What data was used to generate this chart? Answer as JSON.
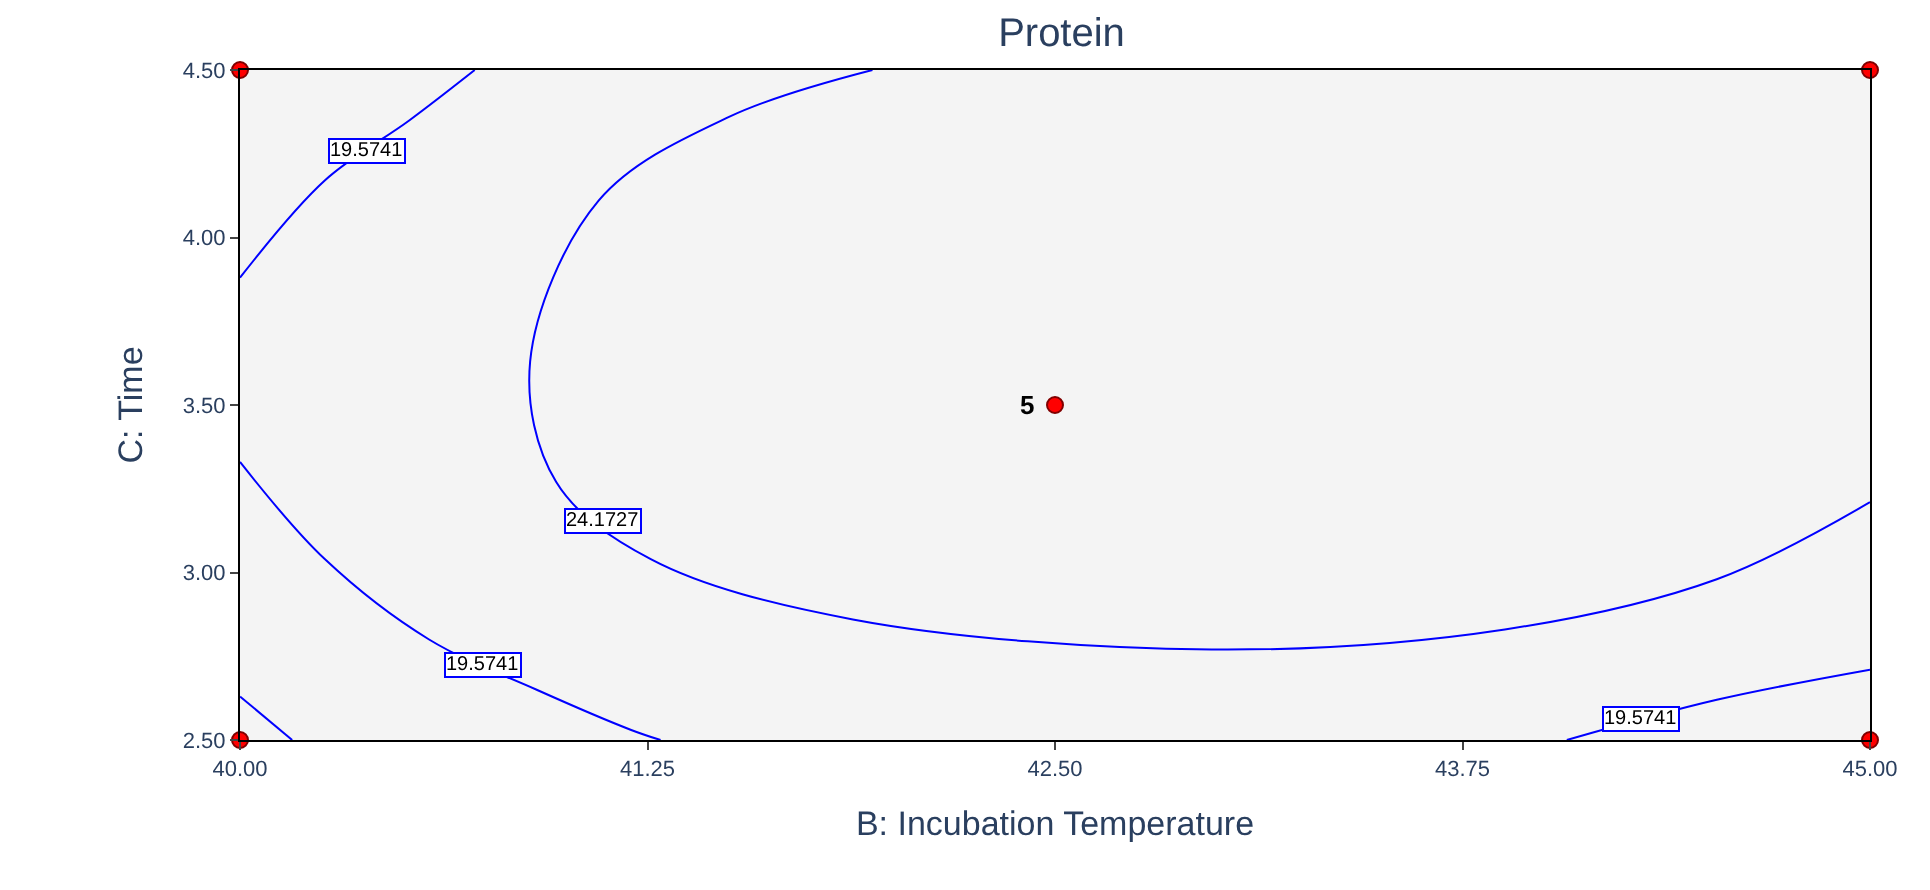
{
  "chart_data": {
    "type": "line",
    "title": "Protein",
    "xlabel": "B: Incubation Temperature",
    "ylabel": "C: Time",
    "xlim": [
      40,
      45
    ],
    "ylim": [
      2.5,
      4.5
    ],
    "xticks": [
      {
        "value": 40,
        "label": "40.00"
      },
      {
        "value": 41.25,
        "label": "41.25"
      },
      {
        "value": 42.5,
        "label": "42.50"
      },
      {
        "value": 43.75,
        "label": "43.75"
      },
      {
        "value": 45,
        "label": "45.00"
      }
    ],
    "yticks": [
      {
        "value": 2.5,
        "label": "2.50"
      },
      {
        "value": 3,
        "label": "3.00"
      },
      {
        "value": 3.5,
        "label": "3.50"
      },
      {
        "value": 4,
        "label": "4.00"
      },
      {
        "value": 4.5,
        "label": "4.50"
      }
    ],
    "grid": false,
    "legend": false,
    "line_style": "solid",
    "series": [
      {
        "name": "24.1727",
        "color": "#0000ff",
        "x": [
          41.94,
          41.5,
          41.1,
          40.89,
          40.97,
          41.26,
          41.88,
          42.98,
          43.88,
          44.53,
          45
        ],
        "values": [
          4.5,
          4.36,
          4.11,
          3.63,
          3.27,
          3.04,
          2.86,
          2.77,
          2.83,
          2.98,
          3.21
        ]
      },
      {
        "name": "19.5741",
        "color": "#0000ff",
        "x": [
          40,
          40.26,
          40.52,
          40.72
        ],
        "values": [
          3.88,
          4.17,
          4.35,
          4.5
        ]
      },
      {
        "name": "19.5741",
        "color": "#0000ff",
        "x": [
          40,
          40.26,
          40.58,
          40.91,
          41.2,
          41.29
        ],
        "values": [
          3.33,
          3.04,
          2.8,
          2.65,
          2.53,
          2.5
        ]
      },
      {
        "name": "19.5741",
        "color": "#0000ff",
        "x": [
          44.07,
          44.53,
          45
        ],
        "values": [
          2.5,
          2.62,
          2.71
        ]
      },
      {
        "color": "#0000ff",
        "x": [
          40,
          40.16
        ],
        "values": [
          2.63,
          2.5
        ]
      },
      {
        "type": "scatter",
        "color": "#ff0000",
        "marker": "circle",
        "x": [
          40,
          40,
          45,
          45,
          42.5
        ],
        "values": [
          2.5,
          4.5,
          2.5,
          4.5,
          3.5
        ]
      }
    ],
    "annotations": [
      {
        "text": "5",
        "x": 42.5,
        "y": 3.5
      }
    ]
  }
}
